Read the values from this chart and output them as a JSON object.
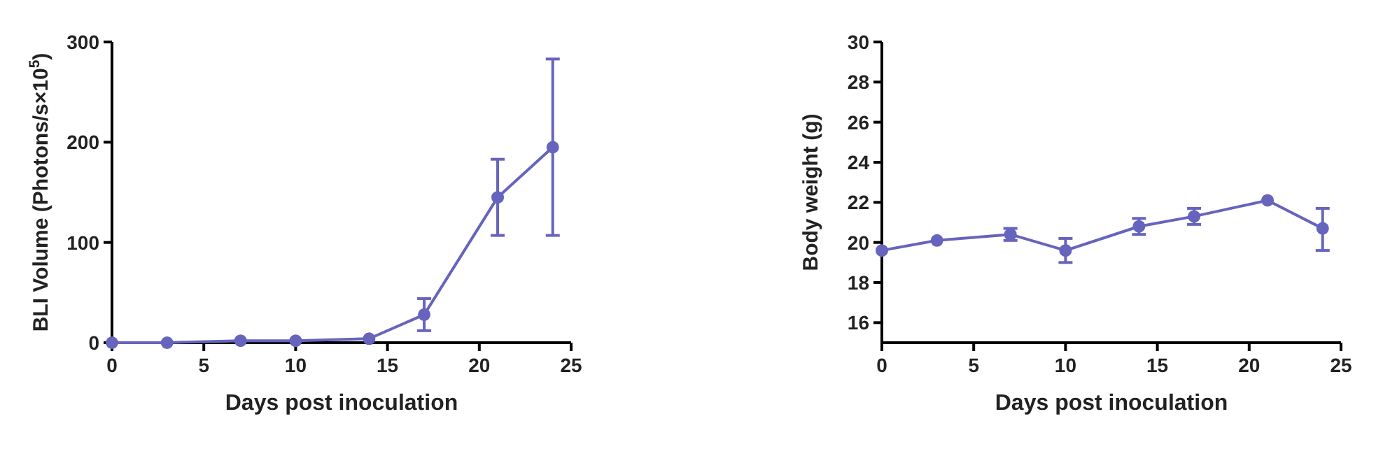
{
  "chart_data": [
    {
      "type": "line",
      "xlabel": "Days post inoculation",
      "ylabel": "BLI Volume (Photons/s×10$^{5}$)",
      "x": [
        0,
        3,
        7,
        10,
        14,
        17,
        21,
        24
      ],
      "xlim": [
        0,
        25
      ],
      "xticks": [
        0,
        5,
        10,
        15,
        20,
        25
      ],
      "ylim": [
        0,
        300
      ],
      "yticks": [
        0,
        100,
        200,
        300
      ],
      "marker": "circle",
      "grid": false,
      "series": [
        {
          "color": "#6664bd",
          "values": [
            0,
            0,
            2,
            2,
            4,
            28,
            145,
            195
          ],
          "errors": [
            null,
            null,
            null,
            null,
            null,
            [
              12,
              44
            ],
            [
              107,
              183
            ],
            [
              107,
              283
            ]
          ]
        }
      ]
    },
    {
      "type": "line",
      "xlabel": "Days post inoculation",
      "ylabel": "Body weight (g)",
      "x": [
        0,
        3,
        7,
        10,
        14,
        17,
        21,
        24
      ],
      "xlim": [
        0,
        25
      ],
      "xticks": [
        0,
        5,
        10,
        15,
        20,
        25
      ],
      "ylim": [
        15,
        30
      ],
      "yticks": [
        16,
        18,
        20,
        22,
        24,
        26,
        28,
        30
      ],
      "marker": "circle",
      "grid": false,
      "series": [
        {
          "color": "#6664bd",
          "values": [
            19.6,
            20.1,
            20.4,
            19.6,
            20.8,
            21.3,
            22.1,
            20.7
          ],
          "errors": [
            null,
            null,
            [
              20.1,
              20.7
            ],
            [
              19.0,
              20.2
            ],
            [
              20.4,
              21.2
            ],
            [
              20.9,
              21.7
            ],
            null,
            [
              19.6,
              21.7
            ]
          ]
        }
      ]
    }
  ]
}
